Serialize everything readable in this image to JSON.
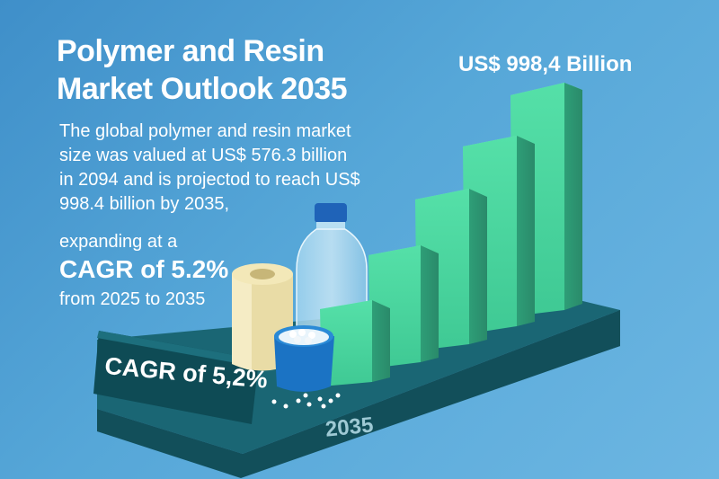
{
  "title": "Polymer and Resin Market Outlook 2035",
  "value_label": "US$ 998,4 Billion",
  "body_text": "The global polymer and resin market size was valued at US$ 576.3 billion in 2094 and is projectod to reach US$ 998.4 billion by 2035,",
  "expand_text": "expanding at a",
  "cagr_text": "CAGR of 5.2%",
  "period_text": "from 2025 to 2035",
  "badge_label": "CAGR of 5,2%",
  "year_label": "2035",
  "colors": {
    "background": "#4a9bd1",
    "platform": "#155e6b",
    "bar": "#49d69e",
    "text": "#ffffff"
  }
}
